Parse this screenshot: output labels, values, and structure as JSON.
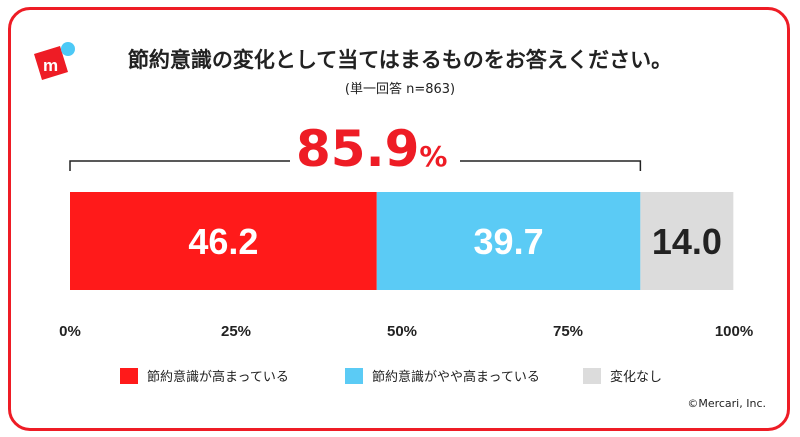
{
  "title": "節約意識の変化として当てはまるものをお答えください。",
  "subtitle": "(単一回答 n=863)",
  "highlight": {
    "value": "85.9",
    "unit": "%"
  },
  "copyright": "©Mercari, Inc.",
  "logo": {
    "letter": "m",
    "colors": {
      "box": "#ee1c25",
      "dot": "#4dc9f6"
    }
  },
  "colors": {
    "accent": "#ee1c25",
    "border": "#ee1c25"
  },
  "chart_data": {
    "type": "bar",
    "orientation": "horizontal-stacked",
    "series": [
      {
        "name": "節約意識が高まっている",
        "value": 46.2,
        "label": "46.2",
        "color": "#ff1a1a",
        "text_color": "#ffffff"
      },
      {
        "name": "節約意識がやや高まっている",
        "value": 39.7,
        "label": "39.7",
        "color": "#5bcbf5",
        "text_color": "#ffffff"
      },
      {
        "name": "変化なし",
        "value": 14.0,
        "label": "14.0",
        "color": "#dcdcdc",
        "text_color": "#222222"
      }
    ],
    "xlim": [
      0,
      100
    ],
    "xticks": [
      "0%",
      "25%",
      "50%",
      "75%",
      "100%"
    ],
    "bracket_span": [
      0,
      85.9
    ],
    "legend_position": "bottom",
    "grid": false
  }
}
